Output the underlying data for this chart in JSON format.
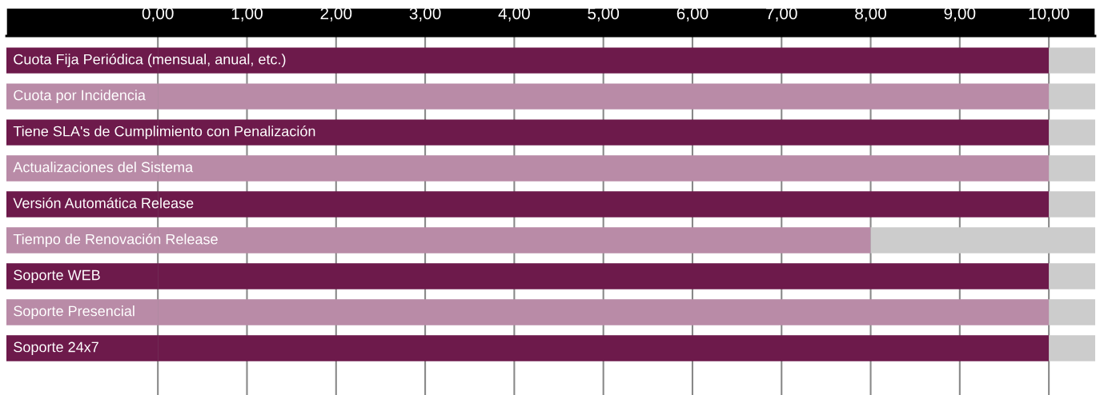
{
  "chart_data": {
    "type": "bar",
    "orientation": "horizontal",
    "stacked": true,
    "categories": [
      "Cuota Fija Periódica (mensual, anual, etc.)",
      "Cuota por Incidencia",
      "Tiene SLA's de Cumplimiento con Penalización",
      "Actualizaciones del Sistema",
      "Versión Automática Release",
      "Tiempo de Renovación Release",
      "Soporte WEB",
      "Soporte Presencial",
      "Soporte 24x7"
    ],
    "series": [
      {
        "colors": [
          "#6d1a4b",
          "#b98ba7",
          "#6d1a4b",
          "#b98ba7",
          "#6d1a4b",
          "#b98ba7",
          "#6d1a4b",
          "#b98ba7",
          "#6d1a4b"
        ],
        "values": [
          10,
          10,
          10,
          10,
          10,
          8,
          10,
          10,
          10
        ]
      },
      {
        "color": "#cccccc",
        "values": [
          0.52,
          0.52,
          0.52,
          0.52,
          0.52,
          2.52,
          0.52,
          0.52,
          0.52
        ]
      }
    ],
    "xlim": [
      -1.7,
      10.52
    ],
    "xticks": [
      {
        "value": 0,
        "label": "0,00"
      },
      {
        "value": 1,
        "label": "1,00"
      },
      {
        "value": 2,
        "label": "2,00"
      },
      {
        "value": 3,
        "label": "3,00"
      },
      {
        "value": 4,
        "label": "4,00"
      },
      {
        "value": 5,
        "label": "5,00"
      },
      {
        "value": 6,
        "label": "6,00"
      },
      {
        "value": 7,
        "label": "7,00"
      },
      {
        "value": 8,
        "label": "8,00"
      },
      {
        "value": 9,
        "label": "9,00"
      },
      {
        "value": 10,
        "label": "10,00"
      }
    ],
    "grid": "x",
    "legend": false
  }
}
